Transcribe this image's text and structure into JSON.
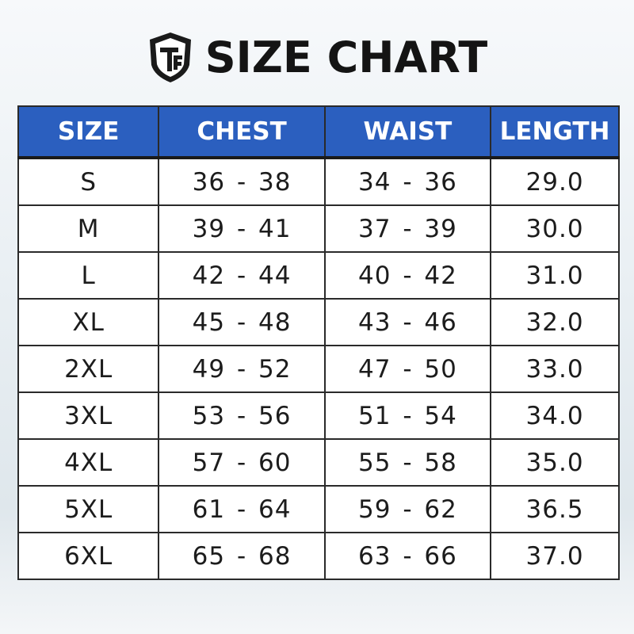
{
  "header": {
    "title": "SIZE CHART"
  },
  "table": {
    "columns": [
      "SIZE",
      "CHEST",
      "WAIST",
      "LENGTH"
    ],
    "rows": [
      [
        "S",
        "36 - 38",
        "34 - 36",
        "29.0"
      ],
      [
        "M",
        "39 - 41",
        "37 - 39",
        "30.0"
      ],
      [
        "L",
        "42 - 44",
        "40 - 42",
        "31.0"
      ],
      [
        "XL",
        "45 - 48",
        "43 - 46",
        "32.0"
      ],
      [
        "2XL",
        "49 - 52",
        "47 - 50",
        "33.0"
      ],
      [
        "3XL",
        "53 - 56",
        "51 - 54",
        "34.0"
      ],
      [
        "4XL",
        "57 - 60",
        "55 - 58",
        "35.0"
      ],
      [
        "5XL",
        "61 - 64",
        "59 - 62",
        "36.5"
      ],
      [
        "6XL",
        "65 - 68",
        "63 - 66",
        "37.0"
      ]
    ]
  }
}
